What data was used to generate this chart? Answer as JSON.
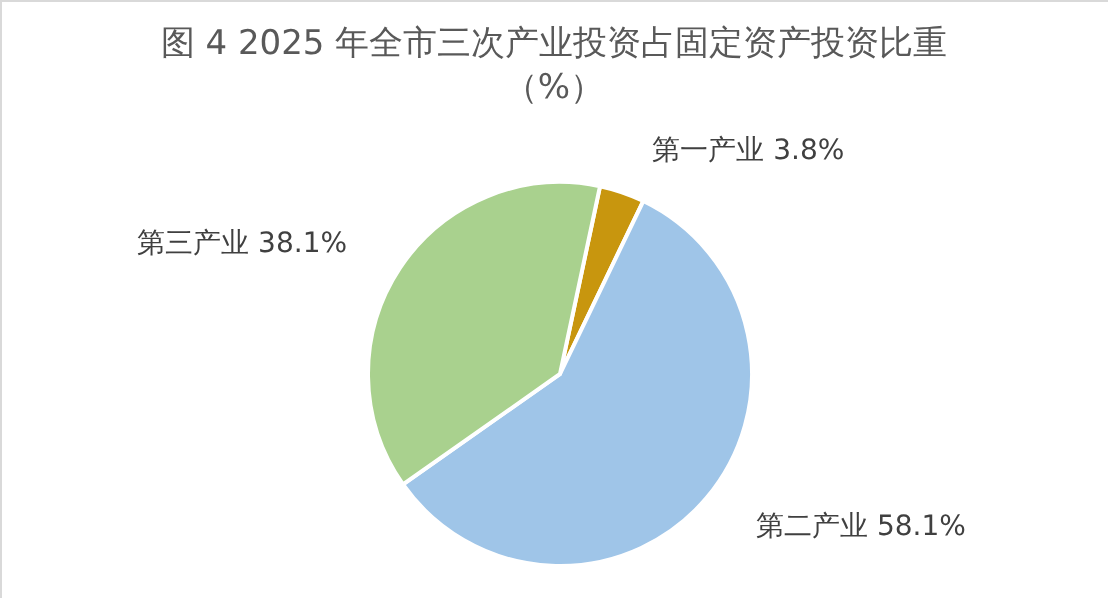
{
  "chart_data": {
    "type": "pie",
    "title": "图 4 2025 年全市三次产业投资占固定资产投资比重（%）",
    "categories": [
      "第一产业",
      "第二产业",
      "第三产业"
    ],
    "values": [
      3.8,
      58.1,
      38.1
    ],
    "colors": [
      "#c8960e",
      "#9fc5e8",
      "#a9d18e"
    ],
    "value_labels": [
      "3.8%",
      "58.1%",
      "38.1%"
    ]
  }
}
